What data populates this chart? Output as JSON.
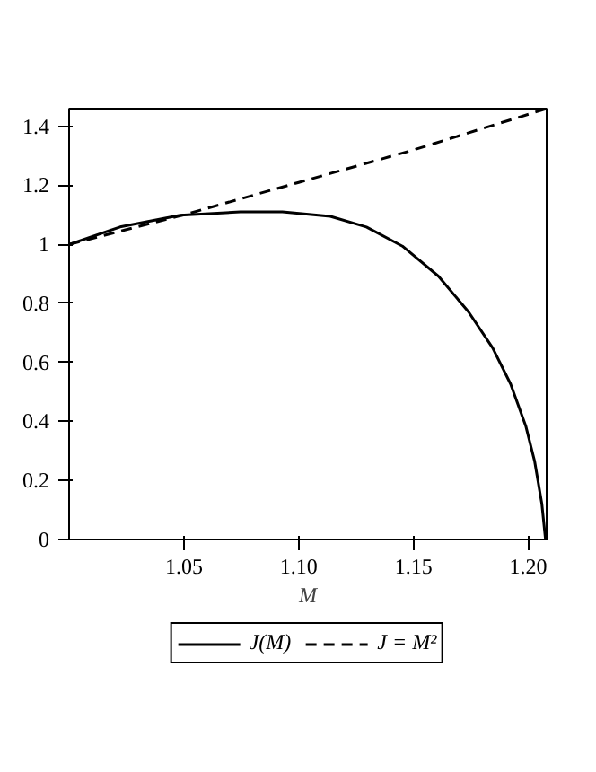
{
  "chart_data": {
    "type": "line",
    "xlabel": "M",
    "xlim": [
      1.0,
      1.208
    ],
    "ylim": [
      0,
      1.46
    ],
    "xticks": [
      {
        "value": 1.05,
        "label": "1.05"
      },
      {
        "value": 1.1,
        "label": "1.10"
      },
      {
        "value": 1.15,
        "label": "1.15"
      },
      {
        "value": 1.2,
        "label": "1.20"
      }
    ],
    "yticks": [
      0,
      0.2,
      0.4,
      0.6,
      0.8,
      1,
      1.2,
      1.4
    ],
    "grid": false,
    "legend": "bottom",
    "marker": "none",
    "series": [
      {
        "name": "J(M)",
        "color": "#000000",
        "line_style": "solid",
        "x": [
          1.0,
          1.0222,
          1.0484,
          1.0746,
          1.0929,
          1.1138,
          1.1295,
          1.1452,
          1.1609,
          1.174,
          1.1845,
          1.1923,
          1.1989,
          1.2028,
          1.2059,
          1.2075
        ],
        "values": [
          1.0,
          1.059,
          1.099,
          1.11,
          1.11,
          1.095,
          1.059,
          0.994,
          0.892,
          0.771,
          0.649,
          0.527,
          0.385,
          0.264,
          0.122,
          0
        ]
      },
      {
        "name": "J = M²",
        "color": "#000000",
        "line_style": "dashed",
        "x": [
          1.0,
          1.05,
          1.1,
          1.15,
          1.208
        ],
        "values": [
          1.0,
          1.1,
          1.21,
          1.32,
          1.46
        ]
      }
    ]
  }
}
